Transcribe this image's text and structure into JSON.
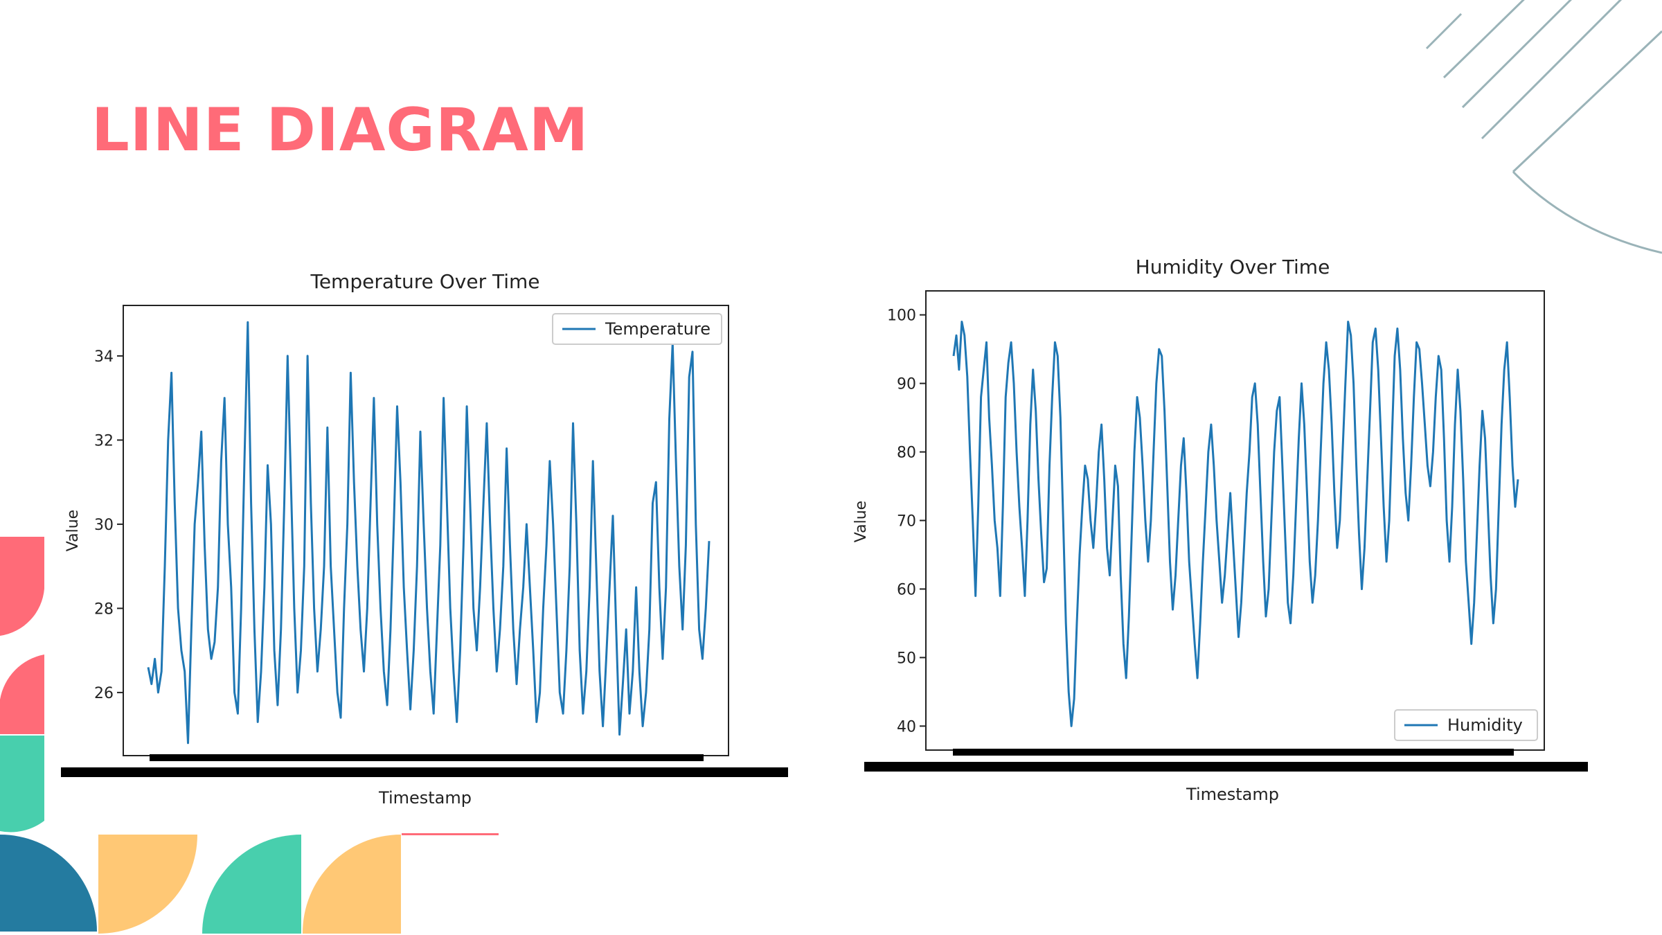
{
  "slide": {
    "title": "LINE DIAGRAM",
    "accent_color": "#ff6b78"
  },
  "decor_colors": [
    "#ff6b78",
    "#48cfad",
    "#ffc875",
    "#247ba0",
    "#9ab3b8"
  ],
  "chart_data": [
    {
      "type": "line",
      "title": "Temperature Over Time",
      "xlabel": "Timestamp",
      "ylabel": "Value",
      "ylim": [
        24.5,
        35.2
      ],
      "yticks": [
        26,
        28,
        30,
        32,
        34
      ],
      "legend": "top-right",
      "grid": false,
      "line_color": "#1f77b4",
      "series": [
        {
          "name": "Temperature",
          "values": [
            26.6,
            26.2,
            26.8,
            26.0,
            26.5,
            29.0,
            32.0,
            33.6,
            30.5,
            28.0,
            27.0,
            26.5,
            24.8,
            27.5,
            30.0,
            31.0,
            32.2,
            29.5,
            27.5,
            26.8,
            27.2,
            28.5,
            31.5,
            33.0,
            30.0,
            28.5,
            26.0,
            25.5,
            28.0,
            31.5,
            34.8,
            30.5,
            27.5,
            25.3,
            26.5,
            28.5,
            31.4,
            30.0,
            27.0,
            25.7,
            27.5,
            30.5,
            34.0,
            31.0,
            28.0,
            26.0,
            27.0,
            29.0,
            34.0,
            30.5,
            28.0,
            26.5,
            27.5,
            29.0,
            32.3,
            29.0,
            27.5,
            26.0,
            25.4,
            28.0,
            30.0,
            33.6,
            31.0,
            29.0,
            27.5,
            26.5,
            28.0,
            30.5,
            33.0,
            30.0,
            28.0,
            26.5,
            25.7,
            27.5,
            30.0,
            32.8,
            31.0,
            28.5,
            27.0,
            25.6,
            27.0,
            29.0,
            32.2,
            30.0,
            28.0,
            26.5,
            25.5,
            27.5,
            29.5,
            33.0,
            30.5,
            28.0,
            26.5,
            25.3,
            27.0,
            29.5,
            32.8,
            30.5,
            28.0,
            27.0,
            28.5,
            30.5,
            32.4,
            30.0,
            28.0,
            26.5,
            27.5,
            29.0,
            31.8,
            29.5,
            27.5,
            26.2,
            27.5,
            28.5,
            30.0,
            28.5,
            27.0,
            25.3,
            26.0,
            28.0,
            29.5,
            31.5,
            30.0,
            28.0,
            26.0,
            25.5,
            27.0,
            29.0,
            32.4,
            30.0,
            27.0,
            25.5,
            26.5,
            28.5,
            31.5,
            29.0,
            26.5,
            25.2,
            26.8,
            28.5,
            30.2,
            27.5,
            25.0,
            26.2,
            27.5,
            25.5,
            26.5,
            28.5,
            26.5,
            25.2,
            26.0,
            27.5,
            30.5,
            31.0,
            28.5,
            26.8,
            28.5,
            32.5,
            34.3,
            31.5,
            29.0,
            27.5,
            29.5,
            33.5,
            34.1,
            30.0,
            27.5,
            26.8,
            28.0,
            29.6
          ]
        }
      ]
    },
    {
      "type": "line",
      "title": "Humidity Over Time",
      "xlabel": "Timestamp",
      "ylabel": "Value",
      "ylim": [
        36.5,
        103.5
      ],
      "yticks": [
        40,
        50,
        60,
        70,
        80,
        90,
        100
      ],
      "legend": "bottom-right",
      "grid": false,
      "line_color": "#1f77b4",
      "series": [
        {
          "name": "Humidity",
          "values": [
            94,
            97,
            92,
            99,
            97,
            91,
            80,
            70,
            59,
            72,
            88,
            92,
            96,
            85,
            78,
            70,
            66,
            59,
            72,
            88,
            93,
            96,
            90,
            80,
            72,
            66,
            59,
            70,
            84,
            92,
            86,
            76,
            68,
            61,
            63,
            78,
            88,
            96,
            94,
            85,
            70,
            55,
            45,
            40,
            44,
            55,
            65,
            72,
            78,
            76,
            70,
            66,
            72,
            80,
            84,
            76,
            66,
            62,
            70,
            78,
            75,
            62,
            52,
            47,
            56,
            68,
            80,
            88,
            85,
            78,
            70,
            64,
            70,
            80,
            90,
            95,
            94,
            86,
            75,
            64,
            57,
            62,
            70,
            78,
            82,
            74,
            64,
            58,
            52,
            47,
            55,
            64,
            72,
            80,
            84,
            78,
            70,
            64,
            58,
            62,
            68,
            74,
            67,
            60,
            53,
            58,
            66,
            74,
            80,
            88,
            90,
            84,
            74,
            64,
            56,
            60,
            70,
            80,
            86,
            88,
            78,
            68,
            58,
            55,
            62,
            72,
            82,
            90,
            84,
            74,
            64,
            58,
            62,
            70,
            80,
            90,
            96,
            92,
            84,
            74,
            66,
            70,
            80,
            90,
            99,
            97,
            90,
            78,
            68,
            60,
            66,
            76,
            86,
            96,
            98,
            92,
            82,
            72,
            64,
            70,
            82,
            94,
            98,
            92,
            82,
            74,
            70,
            78,
            88,
            96,
            95,
            90,
            84,
            78,
            75,
            80,
            88,
            94,
            92,
            82,
            70,
            64,
            72,
            84,
            92,
            86,
            76,
            64,
            58,
            52,
            58,
            68,
            78,
            86,
            82,
            72,
            62,
            55,
            60,
            72,
            84,
            92,
            96,
            88,
            78,
            72,
            76
          ]
        }
      ]
    }
  ]
}
